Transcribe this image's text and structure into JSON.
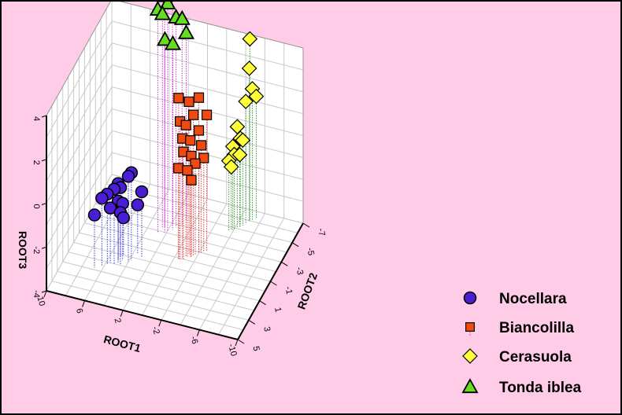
{
  "chart_data": {
    "type": "scatter3d",
    "axes": {
      "x": {
        "label": "ROOT1",
        "ticks": [
          "10",
          "6",
          "2",
          "-2",
          "-6",
          "-10"
        ],
        "range": [
          10,
          -10
        ]
      },
      "y": {
        "label": "ROOT2",
        "ticks": [
          "5",
          "3",
          "1",
          "-1",
          "-3",
          "-5",
          "-7"
        ],
        "range": [
          5,
          -7
        ]
      },
      "z": {
        "label": "ROOT3",
        "ticks": [
          "4",
          "2",
          "0",
          "-2",
          "-4"
        ],
        "range": [
          -4,
          4
        ]
      }
    },
    "grid": true,
    "legend_position": "bottom-right",
    "series": [
      {
        "name": "Nocellara",
        "marker": "circle",
        "color": "#4b1ed6",
        "drop_color": "#3a3ad8",
        "points": [
          [
            6.8,
            1.8,
            -1.6
          ],
          [
            6.2,
            1.5,
            -0.9
          ],
          [
            5.8,
            1.2,
            -0.8
          ],
          [
            5.2,
            1.0,
            -0.6
          ],
          [
            4.9,
            0.8,
            -0.4
          ],
          [
            4.6,
            0.9,
            -0.5
          ],
          [
            4.0,
            0.5,
            -0.1
          ],
          [
            3.8,
            0.3,
            0.0
          ],
          [
            5.6,
            1.0,
            -1.5
          ],
          [
            5.0,
            0.6,
            -1.3
          ],
          [
            4.6,
            0.5,
            -1.4
          ],
          [
            3.0,
            -0.2,
            -1.0
          ],
          [
            5.0,
            0.2,
            -2.0
          ],
          [
            4.8,
            0.0,
            -2.3
          ],
          [
            3.6,
            -0.5,
            -1.8
          ]
        ]
      },
      {
        "name": "Biancolilla",
        "marker": "square",
        "color": "#f04a10",
        "drop_color": "#e63a3a",
        "points": [
          [
            -0.4,
            -1.0,
            3.3
          ],
          [
            -1.2,
            -1.5,
            3.0
          ],
          [
            -2.0,
            -1.9,
            3.1
          ],
          [
            -0.6,
            -0.9,
            2.3
          ],
          [
            -1.0,
            -1.3,
            2.0
          ],
          [
            -1.6,
            -1.6,
            2.4
          ],
          [
            -2.6,
            -2.3,
            2.2
          ],
          [
            -0.8,
            -1.0,
            1.5
          ],
          [
            -1.4,
            -1.4,
            1.3
          ],
          [
            -2.0,
            -1.9,
            1.6
          ],
          [
            -0.9,
            -1.0,
            0.9
          ],
          [
            -1.5,
            -1.4,
            0.6
          ],
          [
            -2.2,
            -2.0,
            0.9
          ],
          [
            -0.5,
            -0.8,
            0.2
          ],
          [
            -1.2,
            -1.2,
            0.0
          ],
          [
            -1.8,
            -1.6,
            0.2
          ],
          [
            -2.4,
            -2.1,
            0.3
          ],
          [
            -1.5,
            -1.4,
            -0.5
          ]
        ]
      },
      {
        "name": "Cerasuola",
        "marker": "diamond",
        "color": "#ffff3a",
        "drop_color": "#3a9a3a",
        "points": [
          [
            -5.0,
            -6.0,
            4.3
          ],
          [
            -5.0,
            -5.9,
            3.0
          ],
          [
            -5.2,
            -6.1,
            2.0
          ],
          [
            -5.5,
            -6.3,
            1.6
          ],
          [
            -4.8,
            -5.6,
            1.6
          ],
          [
            -4.2,
            -5.1,
            0.6
          ],
          [
            -4.4,
            -5.3,
            0.0
          ],
          [
            -4.6,
            -5.4,
            -0.1
          ],
          [
            -3.9,
            -4.8,
            -0.2
          ],
          [
            -4.0,
            -4.9,
            -0.6
          ],
          [
            -4.4,
            -5.2,
            -0.7
          ],
          [
            -3.6,
            -4.6,
            -0.8
          ],
          [
            -3.8,
            -4.7,
            -1.1
          ]
        ]
      },
      {
        "name": "Tonda iblea",
        "marker": "triangle",
        "color": "#66dd22",
        "drop_color": "#cc33cc",
        "points": [
          [
            2.0,
            -3.2,
            6.4
          ],
          [
            2.2,
            -3.0,
            6.8
          ],
          [
            1.6,
            -3.4,
            7.0
          ],
          [
            2.8,
            -2.8,
            6.2
          ],
          [
            2.6,
            -3.3,
            5.8
          ],
          [
            1.4,
            -3.7,
            5.6
          ],
          [
            1.0,
            -4.1,
            5.4
          ],
          [
            2.4,
            -3.4,
            4.6
          ],
          [
            1.8,
            -3.8,
            4.3
          ],
          [
            0.8,
            -4.5,
            4.6
          ]
        ]
      }
    ]
  }
}
